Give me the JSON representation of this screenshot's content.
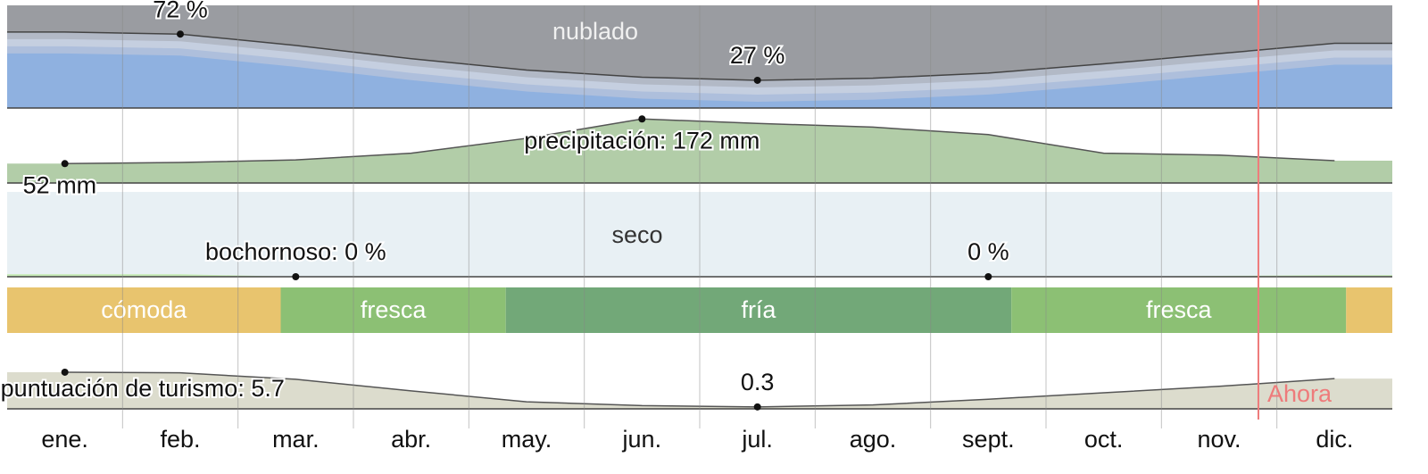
{
  "months": [
    "ene.",
    "feb.",
    "mar.",
    "abr.",
    "may.",
    "jun.",
    "jul.",
    "ago.",
    "sept.",
    "oct.",
    "nov.",
    "dic."
  ],
  "now": {
    "label": "Ahora",
    "month": 10.84
  },
  "clouds": {
    "label": "nublado",
    "ylim": [
      0,
      100
    ],
    "values": [
      74,
      72,
      61,
      48,
      37,
      30,
      27,
      29,
      34,
      43,
      53,
      63
    ],
    "value_labels": [
      null,
      "72 %",
      null,
      null,
      null,
      null,
      "27 %",
      null,
      null,
      null,
      null,
      null
    ]
  },
  "precipitation": {
    "ylim": [
      0,
      175
    ],
    "values": [
      52,
      55,
      62,
      80,
      120,
      172,
      160,
      150,
      130,
      80,
      75,
      60
    ],
    "value_labels": [
      "52 mm",
      null,
      null,
      null,
      null,
      "precipitación: 172 mm",
      null,
      null,
      null,
      null,
      null,
      null
    ]
  },
  "humidity": {
    "label": "seco",
    "ylim": [
      0,
      100
    ],
    "values": [
      3,
      3,
      0,
      0,
      0,
      0,
      0,
      0,
      0,
      0,
      1,
      2
    ],
    "value_labels": [
      null,
      null,
      "bochornoso: 0 %",
      null,
      null,
      null,
      null,
      null,
      "0 %",
      null,
      null,
      null
    ]
  },
  "temperature": {
    "bands": [
      {
        "label": "cómoda",
        "end": 2.37,
        "color": "#e8c46e"
      },
      {
        "label": "fresca",
        "end": 4.32,
        "color": "#8cc074"
      },
      {
        "label": "fría",
        "end": 8.7,
        "color": "#72a878"
      },
      {
        "label": "fresca",
        "end": 11.6,
        "color": "#8cc074"
      },
      {
        "end": 12,
        "color": "#e8c46e"
      }
    ]
  },
  "tourism": {
    "ylim": [
      0,
      10
    ],
    "values": [
      5.7,
      5.6,
      4.6,
      2.8,
      1.1,
      0.5,
      0.3,
      0.6,
      1.5,
      2.5,
      3.5,
      4.7
    ],
    "value_labels": [
      "puntuación de turismo: 5.7",
      null,
      null,
      null,
      null,
      null,
      "0.3",
      null,
      null,
      null,
      null,
      null
    ]
  }
}
